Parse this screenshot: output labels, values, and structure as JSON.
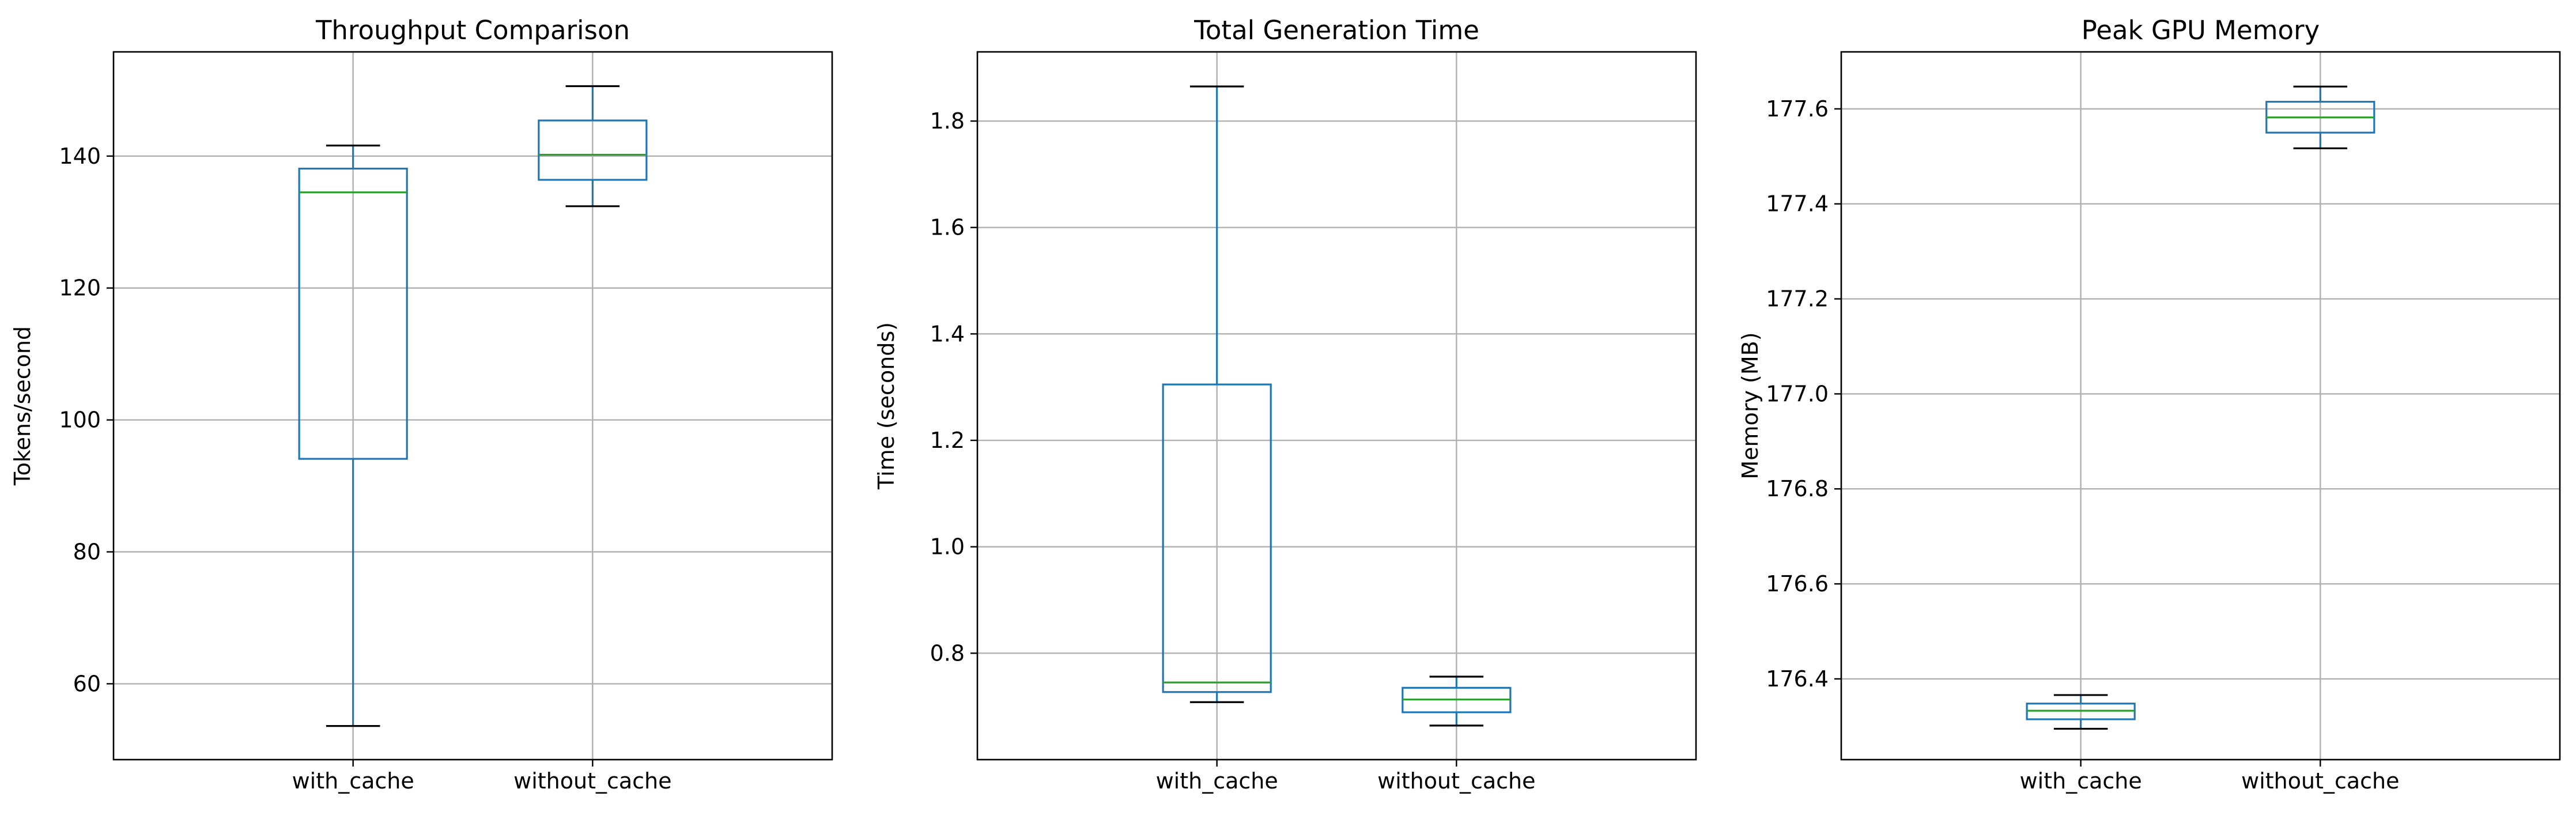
{
  "chart_data": [
    {
      "type": "box",
      "title": "Throughput Comparison",
      "xlabel": "",
      "ylabel": "Tokens/second",
      "ylim": [
        48.5,
        155.8
      ],
      "yticks": [
        60,
        80,
        100,
        120,
        140
      ],
      "categories": [
        "with_cache",
        "without_cache"
      ],
      "grid": true,
      "boxes": [
        {
          "category": "with_cache",
          "whisker_low": 53.6,
          "q1": 94.1,
          "median": 134.5,
          "q3": 138.1,
          "whisker_high": 141.6
        },
        {
          "category": "without_cache",
          "whisker_low": 132.4,
          "q1": 136.4,
          "median": 140.2,
          "q3": 145.4,
          "whisker_high": 150.6
        }
      ]
    },
    {
      "type": "box",
      "title": "Total Generation Time",
      "xlabel": "",
      "ylabel": "Time (seconds)",
      "ylim": [
        0.6,
        1.93
      ],
      "yticks": [
        0.8,
        1.0,
        1.2,
        1.4,
        1.6,
        1.8
      ],
      "categories": [
        "with_cache",
        "without_cache"
      ],
      "grid": true,
      "boxes": [
        {
          "category": "with_cache",
          "whisker_low": 0.708,
          "q1": 0.727,
          "median": 0.745,
          "q3": 1.305,
          "whisker_high": 1.865
        },
        {
          "category": "without_cache",
          "whisker_low": 0.664,
          "q1": 0.689,
          "median": 0.713,
          "q3": 0.735,
          "whisker_high": 0.756
        }
      ]
    },
    {
      "type": "box",
      "title": "Peak GPU Memory",
      "xlabel": "",
      "ylabel": "Memory (MB)",
      "ylim": [
        176.23,
        177.72
      ],
      "yticks": [
        176.4,
        176.6,
        176.8,
        177.0,
        177.2,
        177.4,
        177.6
      ],
      "categories": [
        "with_cache",
        "without_cache"
      ],
      "grid": true,
      "boxes": [
        {
          "category": "with_cache",
          "whisker_low": 176.295,
          "q1": 176.315,
          "median": 176.333,
          "q3": 176.348,
          "whisker_high": 176.366
        },
        {
          "category": "without_cache",
          "whisker_low": 177.517,
          "q1": 177.55,
          "median": 177.582,
          "q3": 177.615,
          "whisker_high": 177.647
        }
      ]
    }
  ],
  "colors": {
    "box": "#1f77b4",
    "median": "#2ca02c",
    "caps": "#000000",
    "grid": "#b0b0b0",
    "axes": "#000000"
  }
}
